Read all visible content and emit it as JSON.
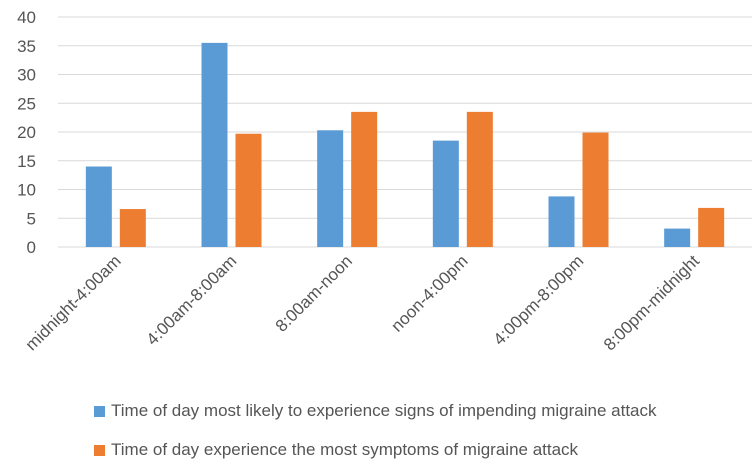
{
  "chart_data": {
    "type": "bar",
    "categories": [
      "midnight-4:00am",
      "4:00am-8:00am",
      "8:00am-noon",
      "noon-4:00pm",
      "4:00pm-8:00pm",
      "8:00pm-midnight"
    ],
    "series": [
      {
        "name": "Time of day most likely to experience signs of impending migraine attack",
        "values": [
          14,
          35.5,
          20.3,
          18.5,
          8.8,
          3.2
        ],
        "color": "#5B9BD5"
      },
      {
        "name": "Time of day experience the most symptoms of migraine attack",
        "values": [
          6.6,
          19.7,
          23.5,
          23.5,
          19.9,
          6.8
        ],
        "color": "#ED7D31"
      }
    ],
    "ylim": [
      0,
      40
    ],
    "yticks": [
      0,
      5,
      10,
      15,
      20,
      25,
      30,
      35,
      40
    ],
    "grid": true,
    "legend": "bottom",
    "title": "",
    "xlabel": "",
    "ylabel": ""
  }
}
